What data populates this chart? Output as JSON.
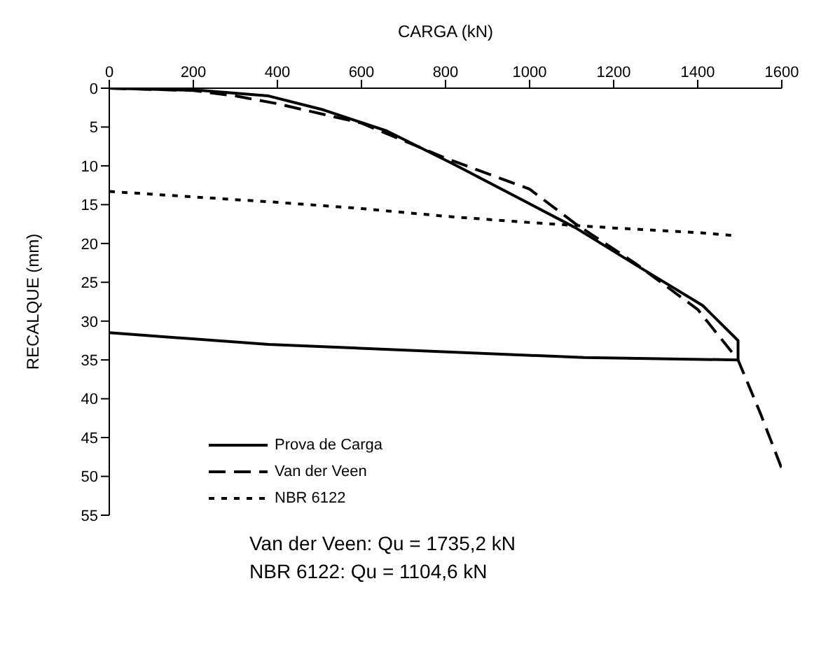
{
  "chart_data": {
    "type": "line",
    "xlabel": "CARGA (kN)",
    "ylabel": "RECALQUE (mm)",
    "xlim": [
      0,
      1600
    ],
    "xticks": [
      0,
      200,
      400,
      600,
      800,
      1000,
      1200,
      1400,
      1600
    ],
    "ylim": [
      55,
      0
    ],
    "yticks": [
      0,
      5,
      10,
      15,
      20,
      25,
      30,
      35,
      40,
      45,
      50,
      55
    ],
    "grid": false,
    "legend": "bottom left",
    "marker": "none",
    "series": [
      {
        "name": "Prova de Carga",
        "color": "#000000",
        "line_style": "solid",
        "x": [
          0,
          220,
          379,
          510,
          660,
          820,
          1110,
          1260,
          1412,
          1496,
          1496,
          1130,
          379,
          0
        ],
        "values": [
          0,
          0.3,
          1,
          2.8,
          5.5,
          9.8,
          18,
          23,
          28,
          32.5,
          35,
          34.7,
          33,
          31.5
        ]
      },
      {
        "name": "Van der Veen",
        "color": "#000000",
        "line_style": "dashed",
        "x": [
          0,
          200,
          300,
          400,
          600,
          800,
          1000,
          1110,
          1250,
          1400,
          1496,
          1550,
          1600
        ],
        "values": [
          0,
          0.3,
          1,
          2,
          4.5,
          9,
          13,
          17.5,
          22.5,
          28.5,
          35,
          42,
          49
        ]
      },
      {
        "name": "NBR 6122",
        "color": "#000000",
        "line_style": "dotted",
        "x": [
          0,
          200,
          400,
          600,
          800,
          1000,
          1200,
          1400,
          1490
        ],
        "values": [
          13.3,
          14,
          14.7,
          15.5,
          16.5,
          17.3,
          18,
          18.6,
          19
        ]
      }
    ],
    "annotations": [
      "Van der Veen: Qu = 1735,2 kN",
      "NBR 6122: Qu = 1104,6 kN"
    ]
  }
}
